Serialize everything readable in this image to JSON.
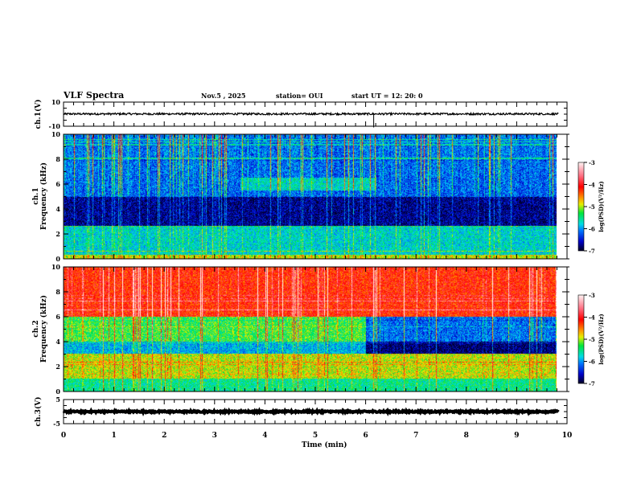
{
  "header": {
    "title": "VLF Spectra",
    "date": "Nov.5  , 2025",
    "station": "station= OUI",
    "start": "start  UT =   12: 20: 0"
  },
  "colors": {
    "axis": "#000000",
    "background": "#ffffff"
  },
  "chart_data": [
    {
      "type": "line",
      "name": "ch1-waveform",
      "ylabel": "ch.1(V)",
      "ylim": [
        -10,
        10
      ],
      "yticks": [
        "10",
        "-10"
      ],
      "xlim": [
        0,
        10
      ],
      "data_end_min": 9.83,
      "level": 0.2,
      "amplitude": 0.8
    },
    {
      "type": "heatmap",
      "name": "ch1-spectrogram",
      "ylabel_line1": "ch.1",
      "ylabel_line2": "Frequency  (kHz)",
      "ylim": [
        0,
        10
      ],
      "yticks": [
        "0",
        "2",
        "4",
        "6",
        "8",
        "10"
      ],
      "xlim": [
        0,
        10
      ],
      "data_end_min": 9.83,
      "colorbar": {
        "label": "log(PSD)(V²/Hz)",
        "range": [
          -7,
          -3
        ],
        "ticks": [
          "-3",
          "-4",
          "-5",
          "-6",
          "-7"
        ]
      },
      "bands_kHz": [
        {
          "f": [
            0,
            0.3
          ],
          "level": -5.0
        },
        {
          "f": [
            0.3,
            2.6
          ],
          "level": -5.8
        },
        {
          "f": [
            2.6,
            5.0
          ],
          "level": -6.8
        },
        {
          "f": [
            5.0,
            10
          ],
          "level": -6.3
        }
      ]
    },
    {
      "type": "heatmap",
      "name": "ch2-spectrogram",
      "ylabel_line1": "ch.2",
      "ylabel_line2": "Frequency  (kHz)",
      "ylim": [
        0,
        10
      ],
      "yticks": [
        "0",
        "2",
        "4",
        "6",
        "8",
        "10"
      ],
      "xlim": [
        0,
        10
      ],
      "data_end_min": 9.83,
      "colorbar": {
        "label": "log(PSD)(V²/Hz)",
        "range": [
          -7,
          -3
        ],
        "ticks": [
          "-3",
          "-4",
          "-5",
          "-6",
          "-7"
        ]
      },
      "bands_kHz": [
        {
          "f": [
            0,
            1
          ],
          "level": -5.6
        },
        {
          "f": [
            1,
            3
          ],
          "level": -5.0
        },
        {
          "f": [
            3,
            4
          ],
          "level": -6.0
        },
        {
          "f": [
            4,
            6
          ],
          "level": -5.4
        },
        {
          "f": [
            6,
            10
          ],
          "level": -4.3
        }
      ]
    },
    {
      "type": "line",
      "name": "ch3-waveform",
      "ylabel": "ch.3(V)",
      "ylim": [
        -5,
        5
      ],
      "yticks": [
        "5",
        "-5"
      ],
      "xlim": [
        0,
        10
      ],
      "data_end_min": 9.83,
      "level": 0.0,
      "amplitude": 0.3
    }
  ],
  "xaxis": {
    "label": "Time  (min)",
    "ticks": [
      "0",
      "1",
      "2",
      "3",
      "4",
      "5",
      "6",
      "7",
      "8",
      "9",
      "10"
    ]
  }
}
